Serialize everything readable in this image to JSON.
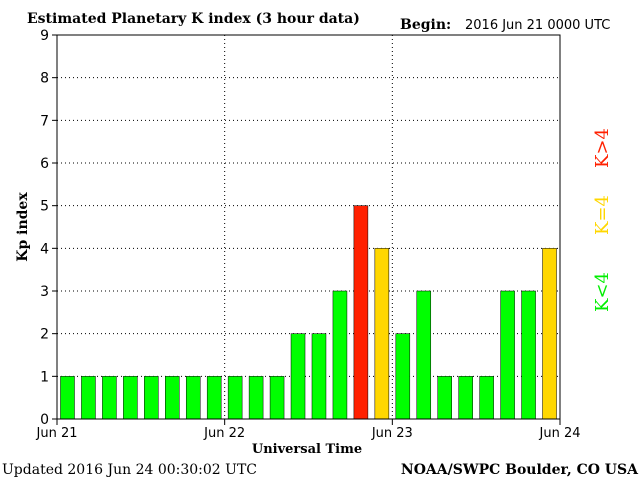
{
  "header": {
    "title": "Estimated Planetary K index (3 hour data)",
    "begin_label": "Begin:",
    "begin_value": "2016 Jun 21 0000 UTC"
  },
  "footer": {
    "updated": "Updated 2016 Jun 24 00:30:02 UTC",
    "source": "NOAA/SWPC Boulder, CO USA"
  },
  "legend": {
    "low": "K<4",
    "mid": "K=4",
    "high": "K>4"
  },
  "colors": {
    "low": "#00ff00",
    "mid": "#ffd700",
    "high": "#ff2000",
    "border": "#000000",
    "grid": "#000000",
    "background": "#ffffff"
  },
  "chart_data": {
    "type": "bar",
    "xlabel": "Universal Time",
    "ylabel": "Kp index",
    "ylim": [
      0,
      9
    ],
    "y_ticks": [
      0,
      1,
      2,
      3,
      4,
      5,
      6,
      7,
      8,
      9
    ],
    "x_ticks": [
      "Jun 21",
      "Jun 22",
      "Jun 23",
      "Jun 24"
    ],
    "grid": "dotted, on",
    "values": [
      1,
      1,
      1,
      1,
      1,
      1,
      1,
      1,
      1,
      1,
      1,
      2,
      2,
      3,
      5,
      4,
      2,
      3,
      1,
      1,
      1,
      3,
      3,
      4
    ],
    "color_rule": "green when K<4, yellow when K=4, red when K>4"
  }
}
